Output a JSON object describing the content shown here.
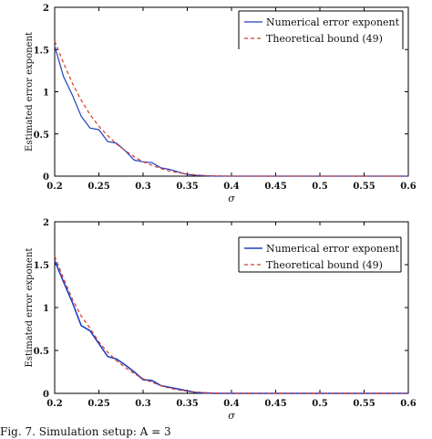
{
  "caption": "Fig. 7. Simulation setup: A = 3",
  "chart_data": [
    {
      "type": "line",
      "xlabel": "σ",
      "ylabel": "Estimated error exponent",
      "xlim": [
        0.2,
        0.6
      ],
      "ylim": [
        0,
        2
      ],
      "xticks": [
        "0.2",
        "0.25",
        "0.3",
        "0.35",
        "0.4",
        "0.45",
        "0.5",
        "0.55",
        "0.6"
      ],
      "yticks": [
        "0",
        "0.5",
        "1",
        "1.5",
        "2"
      ],
      "grid": false,
      "legend_position": "top-right",
      "series": [
        {
          "name": "Numerical error exponent",
          "color": "#1f3fbf",
          "style": "solid",
          "x": [
            0.2,
            0.21,
            0.22,
            0.23,
            0.24,
            0.25,
            0.26,
            0.27,
            0.28,
            0.29,
            0.3,
            0.31,
            0.32,
            0.33,
            0.34,
            0.35,
            0.36,
            0.37,
            0.38,
            0.39,
            0.4,
            0.45,
            0.5,
            0.55,
            0.6
          ],
          "y": [
            1.54,
            1.18,
            0.96,
            0.71,
            0.57,
            0.55,
            0.41,
            0.39,
            0.3,
            0.19,
            0.17,
            0.16,
            0.1,
            0.08,
            0.05,
            0.02,
            0.01,
            0.005,
            0.0,
            0.0,
            0.0,
            0.0,
            0.0,
            0.0,
            0.0
          ]
        },
        {
          "name": "Theoretical bound (49)",
          "color": "#d93a2b",
          "style": "dashed",
          "x": [
            0.2,
            0.21,
            0.22,
            0.23,
            0.24,
            0.25,
            0.26,
            0.27,
            0.28,
            0.29,
            0.3,
            0.31,
            0.32,
            0.33,
            0.34,
            0.35,
            0.36,
            0.37,
            0.38,
            0.39,
            0.4,
            0.45,
            0.5,
            0.55,
            0.6
          ],
          "y": [
            1.6,
            1.34,
            1.1,
            0.9,
            0.73,
            0.59,
            0.48,
            0.38,
            0.3,
            0.23,
            0.17,
            0.13,
            0.09,
            0.06,
            0.04,
            0.025,
            0.015,
            0.008,
            0.004,
            0.002,
            0.0,
            0.0,
            0.0,
            0.0,
            0.0
          ]
        }
      ]
    },
    {
      "type": "line",
      "xlabel": "σ",
      "ylabel": "Estimated error exponent",
      "xlim": [
        0.2,
        0.6
      ],
      "ylim": [
        0,
        2
      ],
      "xticks": [
        "0.2",
        "0.25",
        "0.3",
        "0.35",
        "0.4",
        "0.45",
        "0.5",
        "0.55",
        "0.6"
      ],
      "yticks": [
        "0",
        "0.5",
        "1",
        "1.5",
        "2"
      ],
      "grid": false,
      "legend_position": "top-right",
      "series": [
        {
          "name": "Numerical error exponent",
          "color": "#1f3fbf",
          "style": "solid",
          "x": [
            0.2,
            0.21,
            0.22,
            0.23,
            0.24,
            0.25,
            0.26,
            0.27,
            0.28,
            0.29,
            0.3,
            0.31,
            0.32,
            0.33,
            0.34,
            0.35,
            0.36,
            0.37,
            0.38,
            0.39,
            0.4,
            0.45,
            0.5,
            0.55,
            0.6
          ],
          "y": [
            1.55,
            1.3,
            1.06,
            0.79,
            0.73,
            0.58,
            0.43,
            0.4,
            0.33,
            0.25,
            0.16,
            0.15,
            0.09,
            0.07,
            0.05,
            0.03,
            0.01,
            0.005,
            0.0,
            0.0,
            0.0,
            0.0,
            0.0,
            0.0,
            0.0
          ]
        },
        {
          "name": "Theoretical bound (49)",
          "color": "#d93a2b",
          "style": "dashed",
          "x": [
            0.2,
            0.21,
            0.22,
            0.23,
            0.24,
            0.25,
            0.26,
            0.27,
            0.28,
            0.29,
            0.3,
            0.31,
            0.32,
            0.33,
            0.34,
            0.35,
            0.36,
            0.37,
            0.38,
            0.39,
            0.4,
            0.45,
            0.5,
            0.55,
            0.6
          ],
          "y": [
            1.6,
            1.34,
            1.1,
            0.9,
            0.76,
            0.6,
            0.48,
            0.38,
            0.3,
            0.23,
            0.17,
            0.13,
            0.09,
            0.06,
            0.04,
            0.025,
            0.015,
            0.008,
            0.004,
            0.002,
            0.0,
            0.0,
            0.0,
            0.0,
            0.0
          ]
        }
      ]
    }
  ]
}
